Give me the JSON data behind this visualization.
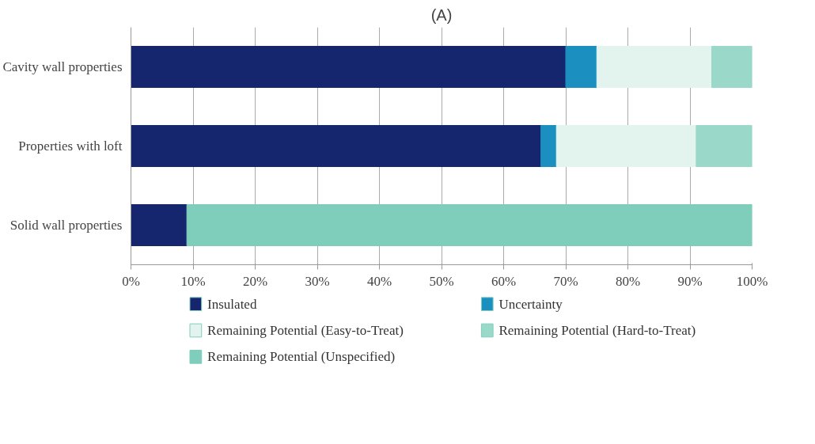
{
  "chart_data": {
    "type": "bar",
    "title": "(A)",
    "orientation": "horizontal",
    "stacked": true,
    "categories": [
      "Cavity wall properties",
      "Properties with loft",
      "Solid wall properties"
    ],
    "series": [
      {
        "name": "Insulated",
        "color": "#15266e",
        "values": [
          70,
          66,
          9
        ]
      },
      {
        "name": "Uncertainty",
        "color": "#1b8fc0",
        "values": [
          5,
          2.5,
          null
        ]
      },
      {
        "name": "Remaining Potential (Easy-to-Treat)",
        "color": "#e3f4ef",
        "values": [
          18.5,
          22.5,
          null
        ]
      },
      {
        "name": "Remaining Potential (Hard-to-Treat)",
        "color": "#9ad8c9",
        "values": [
          6.5,
          9,
          null
        ]
      },
      {
        "name": "Remaining Potential (Unspecified)",
        "color": "#7fcdbb",
        "values": [
          null,
          null,
          91
        ]
      }
    ],
    "xlim": [
      0,
      100
    ],
    "xticks": [
      {
        "value": 0,
        "label": "0%"
      },
      {
        "value": 10,
        "label": "10%"
      },
      {
        "value": 20,
        "label": "20%"
      },
      {
        "value": 30,
        "label": "30%"
      },
      {
        "value": 40,
        "label": "40%"
      },
      {
        "value": 50,
        "label": "50%"
      },
      {
        "value": 60,
        "label": "60%"
      },
      {
        "value": 70,
        "label": "70%"
      },
      {
        "value": 80,
        "label": "80%"
      },
      {
        "value": 90,
        "label": "90%"
      },
      {
        "value": 100,
        "label": "100%"
      }
    ],
    "grid": "x",
    "legend": "bottom"
  }
}
